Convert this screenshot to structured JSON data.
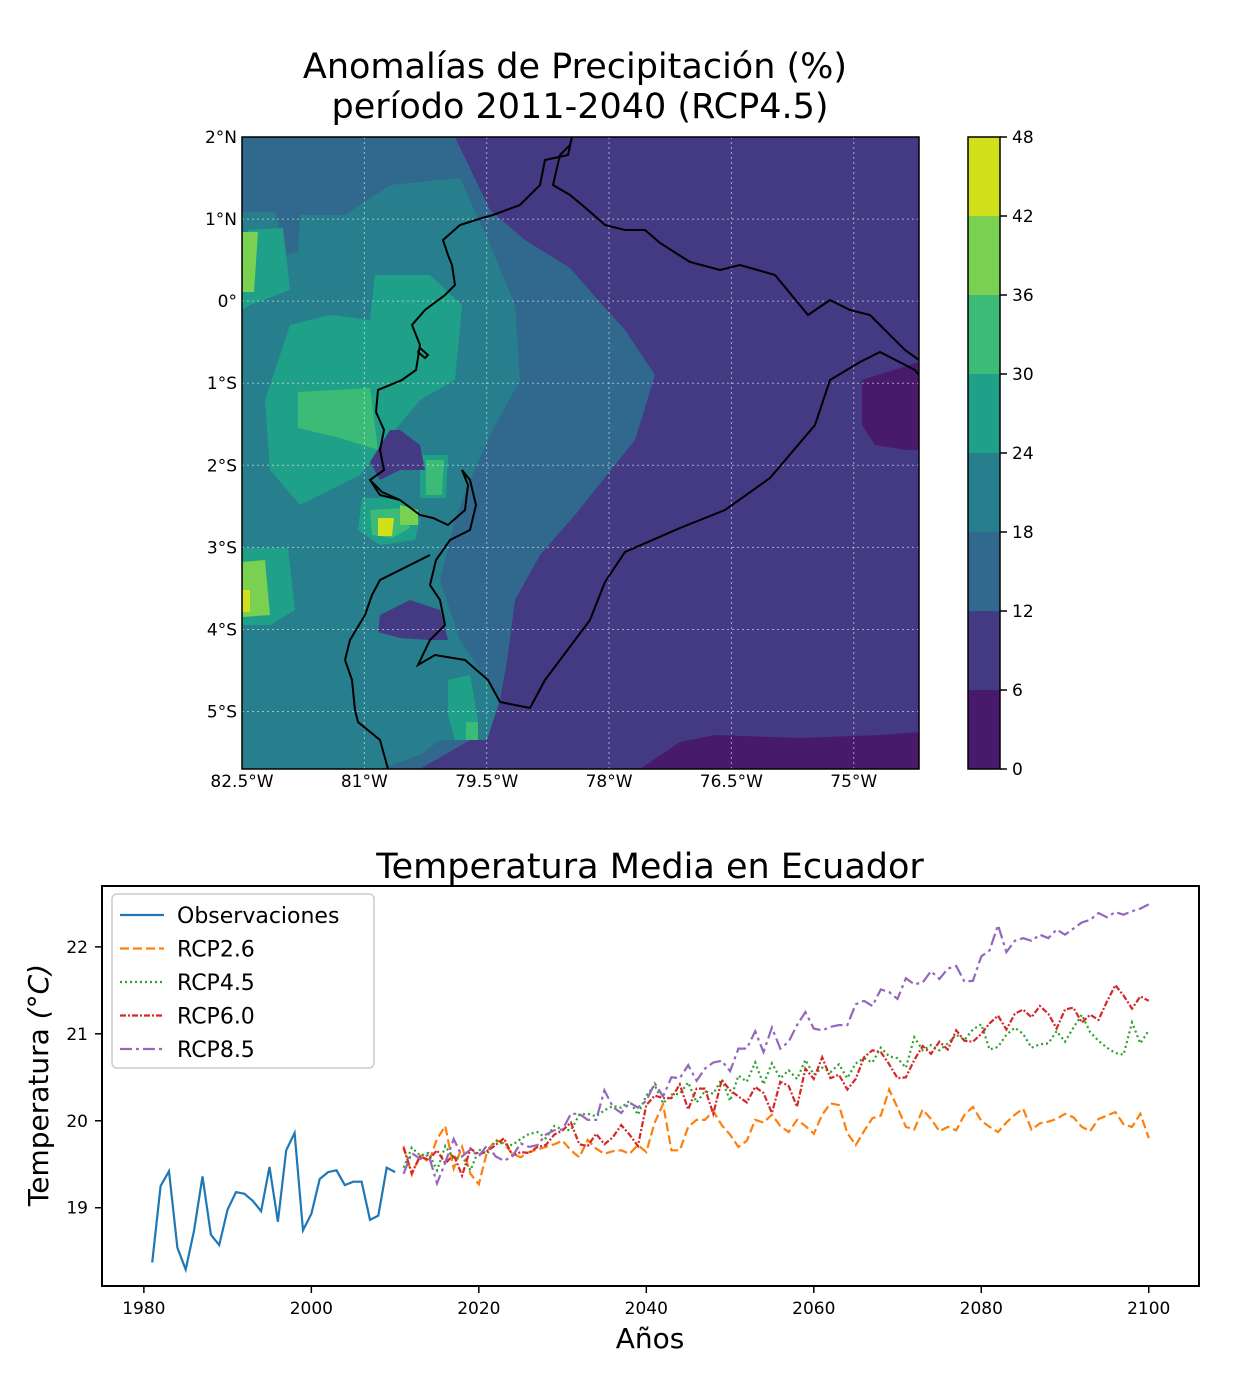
{
  "chart_data": [
    {
      "type": "contour-map",
      "title_line1": "Anomalías de Precipitación (%)",
      "title_line2": "período 2011-2040 (RCP4.5)",
      "lon_ticks": [
        "82.5°W",
        "81°W",
        "79.5°W",
        "78°W",
        "76.5°W",
        "75°W"
      ],
      "lat_ticks": [
        "2°N",
        "1°N",
        "0°",
        "1°S",
        "2°S",
        "3°S",
        "4°S",
        "5°S"
      ],
      "lon_range": [
        -82.5,
        -74.2
      ],
      "lat_range": [
        -5.7,
        2.0
      ],
      "grid": true,
      "colorbar": {
        "levels": [
          0,
          6,
          12,
          18,
          24,
          30,
          36,
          42,
          48
        ],
        "tick_labels": [
          "0",
          "6",
          "12",
          "18",
          "24",
          "30",
          "36",
          "42",
          "48"
        ],
        "colors": [
          "#481a6c",
          "#443983",
          "#31688e",
          "#277f8e",
          "#1fa088",
          "#3bbb75",
          "#7ad151",
          "#d0e11c"
        ]
      },
      "colors": {
        "boundary": "#000000"
      }
    },
    {
      "type": "line",
      "title": "Temperatura Media en Ecuador",
      "xlabel": "Años",
      "ylabel_text": "Temperatura",
      "ylabel_unit": "(°C)",
      "xlim": [
        1975,
        2106
      ],
      "ylim": [
        18.1,
        22.7
      ],
      "x_ticks": [
        1980,
        2000,
        2020,
        2040,
        2060,
        2080,
        2100
      ],
      "y_ticks": [
        19,
        20,
        21,
        22
      ],
      "legend_position": "upper-left",
      "series": [
        {
          "name": "Observaciones",
          "color": "#1f77b4",
          "style": "solid",
          "start": 1981,
          "values": [
            18.37,
            19.25,
            19.42,
            18.54,
            18.29,
            18.74,
            19.36,
            18.69,
            18.57,
            18.98,
            19.18,
            19.16,
            19.08,
            18.96,
            19.47,
            18.84,
            19.66,
            19.86,
            18.74,
            18.93,
            19.33,
            19.41,
            19.43,
            19.26,
            19.3,
            19.3,
            18.86,
            18.91,
            19.46,
            19.41
          ]
        },
        {
          "name": "RCP2.6",
          "color": "#ff7f0e",
          "style": "dashed",
          "start": 2011,
          "values": [
            19.71,
            19.38,
            19.61,
            19.52,
            19.79,
            19.94,
            19.45,
            19.7,
            19.39,
            19.27,
            19.65,
            19.78,
            19.74,
            19.62,
            19.58,
            19.64,
            19.67,
            19.7,
            19.73,
            19.77,
            19.66,
            19.58,
            19.78,
            19.68,
            19.62,
            19.65,
            19.66,
            19.62,
            19.72,
            19.64,
            19.98,
            20.19,
            19.66,
            19.66,
            19.93,
            20.01,
            20.01,
            20.11,
            19.95,
            19.84,
            19.7,
            19.77,
            20.01,
            19.98,
            20.07,
            19.94,
            19.87,
            20.01,
            19.94,
            19.85,
            20.07,
            20.2,
            20.18,
            19.86,
            19.72,
            19.88,
            20.03,
            20.06,
            20.36,
            20.15,
            19.93,
            19.9,
            20.13,
            20.02,
            19.88,
            19.93,
            19.89,
            20.07,
            20.16,
            20.0,
            19.93,
            19.87,
            19.98,
            20.07,
            20.14,
            19.9,
            19.97,
            19.99,
            20.02,
            20.08,
            20.04,
            19.93,
            19.88,
            20.02,
            20.06,
            20.1,
            19.96,
            19.93,
            20.08,
            19.8
          ]
        },
        {
          "name": "RCP4.5",
          "color": "#2ca02c",
          "style": "dotted",
          "start": 2011,
          "values": [
            19.46,
            19.69,
            19.6,
            19.63,
            19.43,
            19.71,
            19.56,
            19.59,
            19.43,
            19.67,
            19.62,
            19.77,
            19.73,
            19.72,
            19.79,
            19.85,
            19.87,
            19.8,
            19.94,
            19.9,
            19.89,
            20.07,
            20.08,
            20.05,
            20.12,
            20.17,
            20.15,
            20.23,
            20.07,
            20.29,
            20.41,
            20.2,
            20.3,
            20.31,
            20.44,
            20.21,
            20.34,
            20.31,
            20.48,
            20.23,
            20.52,
            20.45,
            20.67,
            20.42,
            20.66,
            20.49,
            20.58,
            20.48,
            20.7,
            20.53,
            20.61,
            20.56,
            20.65,
            20.49,
            20.66,
            20.72,
            20.67,
            20.84,
            20.74,
            20.72,
            20.61,
            20.96,
            20.81,
            20.87,
            20.81,
            20.89,
            20.99,
            20.93,
            21.05,
            21.11,
            20.82,
            20.85,
            20.99,
            21.07,
            21.0,
            20.84,
            20.88,
            20.89,
            21.03,
            20.91,
            21.07,
            21.22,
            21.02,
            20.92,
            20.84,
            20.78,
            20.76,
            21.13,
            20.89,
            21.04
          ]
        },
        {
          "name": "RCP6.0",
          "color": "#d62728",
          "style": "dashdot-dense",
          "start": 2011,
          "values": [
            19.69,
            19.4,
            19.59,
            19.55,
            19.66,
            19.51,
            19.61,
            19.37,
            19.68,
            19.61,
            19.65,
            19.72,
            19.8,
            19.6,
            19.64,
            19.63,
            19.7,
            19.72,
            19.84,
            19.89,
            19.98,
            19.73,
            19.71,
            19.85,
            19.73,
            19.81,
            19.95,
            19.84,
            19.71,
            20.18,
            20.29,
            20.26,
            20.26,
            20.42,
            20.13,
            20.37,
            20.37,
            20.08,
            20.47,
            20.35,
            20.28,
            20.21,
            20.39,
            20.32,
            20.09,
            20.45,
            20.4,
            20.16,
            20.6,
            20.48,
            20.73,
            20.49,
            20.53,
            20.36,
            20.48,
            20.73,
            20.81,
            20.79,
            20.65,
            20.49,
            20.5,
            20.7,
            20.86,
            20.77,
            20.91,
            20.82,
            21.04,
            20.92,
            20.91,
            21.0,
            21.12,
            21.21,
            21.05,
            21.23,
            21.28,
            21.19,
            21.32,
            21.23,
            21.06,
            21.28,
            21.3,
            21.13,
            21.22,
            21.16,
            21.37,
            21.56,
            21.44,
            21.29,
            21.43,
            21.38
          ]
        },
        {
          "name": "RCP8.5",
          "color": "#9467bd",
          "style": "dashdot",
          "start": 2011,
          "values": [
            19.39,
            19.63,
            19.56,
            19.61,
            19.28,
            19.52,
            19.79,
            19.59,
            19.67,
            19.59,
            19.72,
            19.59,
            19.54,
            19.59,
            19.74,
            19.7,
            19.72,
            19.84,
            19.89,
            19.9,
            20.08,
            20.08,
            20.01,
            20.01,
            20.35,
            20.16,
            20.09,
            20.21,
            20.15,
            20.23,
            20.43,
            20.28,
            20.5,
            20.49,
            20.64,
            20.46,
            20.6,
            20.67,
            20.69,
            20.57,
            20.83,
            20.83,
            21.03,
            20.79,
            21.07,
            20.83,
            20.91,
            21.1,
            21.25,
            21.06,
            21.04,
            21.08,
            21.1,
            21.1,
            21.34,
            21.38,
            21.32,
            21.51,
            21.48,
            21.4,
            21.64,
            21.57,
            21.59,
            21.72,
            21.63,
            21.75,
            21.78,
            21.6,
            21.61,
            21.89,
            21.96,
            22.25,
            21.94,
            22.07,
            22.1,
            22.07,
            22.14,
            22.1,
            22.2,
            22.14,
            22.21,
            22.28,
            22.31,
            22.39,
            22.34,
            22.4,
            22.37,
            22.41,
            22.44,
            22.49
          ]
        }
      ]
    }
  ]
}
